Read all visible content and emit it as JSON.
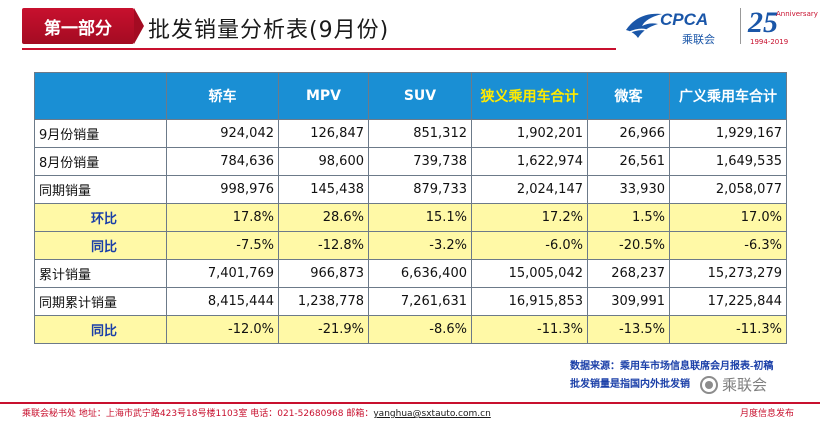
{
  "header": {
    "section_label": "第一部分",
    "title": "批发销量分析表(9月份)",
    "logo_cpca_text": "CPCA",
    "logo_cpca_cn": "乘联会",
    "logo_25_num": "25",
    "logo_25_sup": "Anniversary",
    "logo_25_sub": "1994-2019"
  },
  "colors": {
    "brand_red": "#c8102e",
    "header_blue": "#1a8fd4",
    "highlight_yellow": "#fff9a6",
    "grey_cell": "#dcdcdc",
    "label_blue": "#1a3fa8"
  },
  "table": {
    "columns": [
      "",
      "轿车",
      "MPV",
      "SUV",
      "狭义乘用车合计",
      "微客",
      "广义乘用车合计"
    ],
    "rows": [
      {
        "label": "9月份销量",
        "values": [
          "924,042",
          "126,847",
          "851,312",
          "1,902,201",
          "26,966",
          "1,929,167"
        ]
      },
      {
        "label": "8月份销量",
        "values": [
          "784,636",
          "98,600",
          "739,738",
          "1,622,974",
          "26,561",
          "1,649,535"
        ]
      },
      {
        "label": "同期销量",
        "values": [
          "998,976",
          "145,438",
          "879,733",
          "2,024,147",
          "33,930",
          "2,058,077"
        ]
      },
      {
        "label": "环比",
        "values": [
          "17.8%",
          "28.6%",
          "15.1%",
          "17.2%",
          "1.5%",
          "17.0%"
        ]
      },
      {
        "label": "同比",
        "values": [
          "-7.5%",
          "-12.8%",
          "-3.2%",
          "-6.0%",
          "-20.5%",
          "-6.3%"
        ]
      },
      {
        "label": "累计销量",
        "values": [
          "7,401,769",
          "966,873",
          "6,636,400",
          "15,005,042",
          "268,237",
          "15,273,279"
        ]
      },
      {
        "label": "同期累计销量",
        "values": [
          "8,415,444",
          "1,238,778",
          "7,261,631",
          "16,915,853",
          "309,991",
          "17,225,844"
        ]
      },
      {
        "label": "同比",
        "values": [
          "-12.0%",
          "-21.9%",
          "-8.6%",
          "-11.3%",
          "-13.5%",
          "-11.3%"
        ]
      }
    ]
  },
  "notes": {
    "source": "数据来源：乘用车市场信息联席会月报表-初稿",
    "definition": "批发销量是指国内外批发销",
    "watermark": "乘联会"
  },
  "footer": {
    "address": "乘联会秘书处   地址：上海市武宁路423号18号楼1103室  电话：021-52680968   邮箱：",
    "email": "yanghua@sxtauto.com.cn",
    "right": "月度信息发布"
  }
}
